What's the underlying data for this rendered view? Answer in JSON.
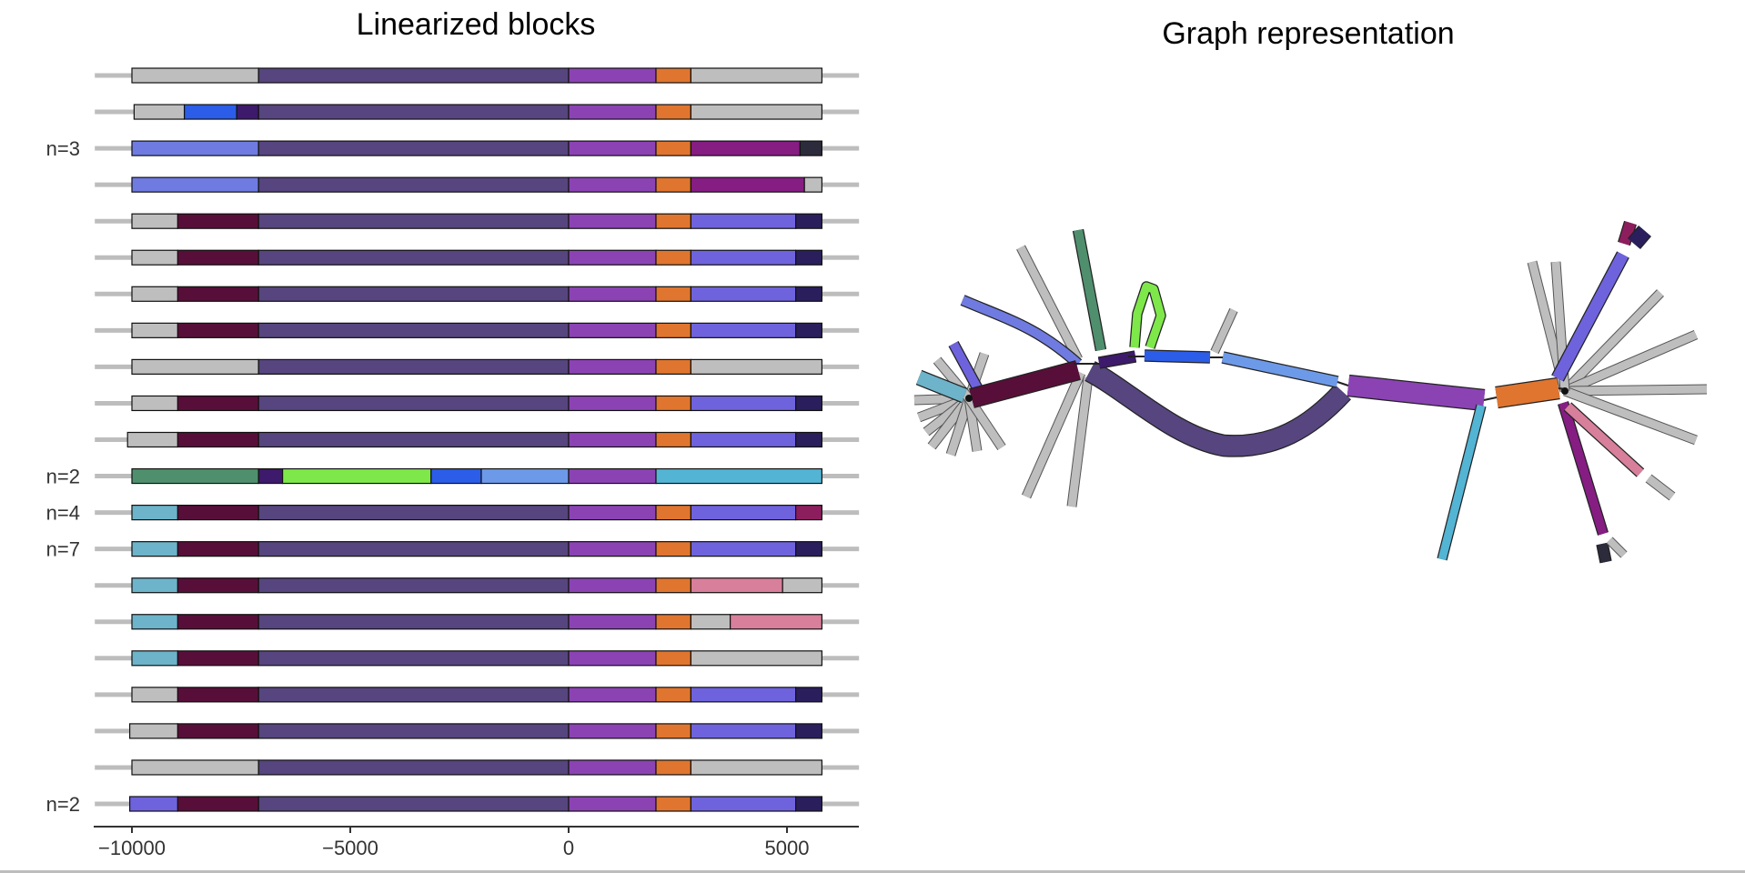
{
  "titles": {
    "linear": "Linearized blocks",
    "graph": "Graph representation"
  },
  "colors": {
    "track": "#bdbdbd",
    "gray": "#bebebe",
    "darkpurple": "#56457e",
    "purple": "#8b43b4",
    "orange": "#e0752f",
    "blue": "#6f7be0",
    "maroon": "#570f39",
    "violet": "#6e63dc",
    "navy": "#2a1f5c",
    "magenta": "#861d83",
    "charcoal": "#2b2b3b",
    "teal": "#6db3c9",
    "pink": "#d77f9b",
    "indigo": "#3d1a6b",
    "royal": "#2b5de8",
    "green": "#4f8f6d",
    "lime": "#7ee84a",
    "skyblue": "#6d9ae8",
    "cyan": "#53b4d4",
    "berry": "#8d1e5e"
  },
  "x_axis": {
    "min": -10000,
    "max": 5000,
    "ticks": [
      -10000,
      -5000,
      0,
      5000
    ],
    "tick_labels": [
      "−10000",
      "−5000",
      "0",
      "5000"
    ]
  },
  "rows": [
    {
      "label": "",
      "track": [
        -10850,
        6650
      ],
      "blocks": [
        [
          -10000,
          -7100,
          "gray"
        ],
        [
          -7100,
          0,
          "darkpurple"
        ],
        [
          0,
          2000,
          "purple"
        ],
        [
          2000,
          2800,
          "orange"
        ],
        [
          2800,
          5800,
          "gray"
        ]
      ]
    },
    {
      "label": "",
      "track": [
        -10850,
        6650
      ],
      "blocks": [
        [
          -9950,
          -8800,
          "gray"
        ],
        [
          -8800,
          -7600,
          "royal"
        ],
        [
          -7600,
          -7100,
          "indigo"
        ],
        [
          -7100,
          0,
          "darkpurple"
        ],
        [
          0,
          2000,
          "purple"
        ],
        [
          2000,
          2800,
          "orange"
        ],
        [
          2800,
          5800,
          "gray"
        ]
      ]
    },
    {
      "label": "n=3",
      "track": [
        -10850,
        6650
      ],
      "blocks": [
        [
          -10000,
          -7100,
          "blue"
        ],
        [
          -7100,
          0,
          "darkpurple"
        ],
        [
          0,
          2000,
          "purple"
        ],
        [
          2000,
          2800,
          "orange"
        ],
        [
          2800,
          5300,
          "magenta"
        ],
        [
          5300,
          5800,
          "charcoal"
        ]
      ]
    },
    {
      "label": "",
      "track": [
        -10850,
        6650
      ],
      "blocks": [
        [
          -10000,
          -7100,
          "blue"
        ],
        [
          -7100,
          0,
          "darkpurple"
        ],
        [
          0,
          2000,
          "purple"
        ],
        [
          2000,
          2800,
          "orange"
        ],
        [
          2800,
          5400,
          "magenta"
        ],
        [
          5400,
          5800,
          "gray"
        ]
      ]
    },
    {
      "label": "",
      "track": [
        -10850,
        6650
      ],
      "blocks": [
        [
          -10000,
          -8950,
          "gray"
        ],
        [
          -8950,
          -7100,
          "maroon"
        ],
        [
          -7100,
          0,
          "darkpurple"
        ],
        [
          0,
          2000,
          "purple"
        ],
        [
          2000,
          2800,
          "orange"
        ],
        [
          2800,
          5200,
          "violet"
        ],
        [
          5200,
          5800,
          "navy"
        ]
      ]
    },
    {
      "label": "",
      "track": [
        -10850,
        6650
      ],
      "blocks": [
        [
          -10000,
          -8950,
          "gray"
        ],
        [
          -8950,
          -7100,
          "maroon"
        ],
        [
          -7100,
          0,
          "darkpurple"
        ],
        [
          0,
          2000,
          "purple"
        ],
        [
          2000,
          2800,
          "orange"
        ],
        [
          2800,
          5200,
          "violet"
        ],
        [
          5200,
          5800,
          "navy"
        ]
      ]
    },
    {
      "label": "",
      "track": [
        -10850,
        6650
      ],
      "blocks": [
        [
          -10000,
          -8950,
          "gray"
        ],
        [
          -8950,
          -7100,
          "maroon"
        ],
        [
          -7100,
          0,
          "darkpurple"
        ],
        [
          0,
          2000,
          "purple"
        ],
        [
          2000,
          2800,
          "orange"
        ],
        [
          2800,
          5200,
          "violet"
        ],
        [
          5200,
          5800,
          "navy"
        ]
      ]
    },
    {
      "label": "",
      "track": [
        -10850,
        6650
      ],
      "blocks": [
        [
          -10000,
          -8950,
          "gray"
        ],
        [
          -8950,
          -7100,
          "maroon"
        ],
        [
          -7100,
          0,
          "darkpurple"
        ],
        [
          0,
          2000,
          "purple"
        ],
        [
          2000,
          2800,
          "orange"
        ],
        [
          2800,
          5200,
          "violet"
        ],
        [
          5200,
          5800,
          "navy"
        ]
      ]
    },
    {
      "label": "",
      "track": [
        -10850,
        6650
      ],
      "blocks": [
        [
          -10000,
          -7100,
          "gray"
        ],
        [
          -7100,
          0,
          "darkpurple"
        ],
        [
          0,
          2000,
          "purple"
        ],
        [
          2000,
          2800,
          "orange"
        ],
        [
          2800,
          5800,
          "gray"
        ]
      ]
    },
    {
      "label": "",
      "track": [
        -10850,
        6650
      ],
      "blocks": [
        [
          -10000,
          -8950,
          "gray"
        ],
        [
          -8950,
          -7100,
          "maroon"
        ],
        [
          -7100,
          0,
          "darkpurple"
        ],
        [
          0,
          2000,
          "purple"
        ],
        [
          2000,
          2800,
          "orange"
        ],
        [
          2800,
          5200,
          "violet"
        ],
        [
          5200,
          5800,
          "navy"
        ]
      ]
    },
    {
      "label": "",
      "track": [
        -10850,
        6650
      ],
      "blocks": [
        [
          -10100,
          -8950,
          "gray"
        ],
        [
          -8950,
          -7100,
          "maroon"
        ],
        [
          -7100,
          0,
          "darkpurple"
        ],
        [
          0,
          2000,
          "purple"
        ],
        [
          2000,
          2800,
          "orange"
        ],
        [
          2800,
          5200,
          "violet"
        ],
        [
          5200,
          5800,
          "navy"
        ]
      ]
    },
    {
      "label": "n=2",
      "track": [
        -10850,
        6650
      ],
      "blocks": [
        [
          -10000,
          -7100,
          "green"
        ],
        [
          -7100,
          -6550,
          "indigo"
        ],
        [
          -6550,
          -3150,
          "lime"
        ],
        [
          -3150,
          -2000,
          "royal"
        ],
        [
          -2000,
          0,
          "skyblue"
        ],
        [
          0,
          2000,
          "purple"
        ],
        [
          2000,
          5800,
          "cyan"
        ]
      ]
    },
    {
      "label": "n=4",
      "track": [
        -10850,
        6650
      ],
      "blocks": [
        [
          -10000,
          -8950,
          "teal"
        ],
        [
          -8950,
          -7100,
          "maroon"
        ],
        [
          -7100,
          0,
          "darkpurple"
        ],
        [
          0,
          2000,
          "purple"
        ],
        [
          2000,
          2800,
          "orange"
        ],
        [
          2800,
          5200,
          "violet"
        ],
        [
          5200,
          5800,
          "berry"
        ]
      ]
    },
    {
      "label": "n=7",
      "track": [
        -10850,
        6650
      ],
      "blocks": [
        [
          -10000,
          -8950,
          "teal"
        ],
        [
          -8950,
          -7100,
          "maroon"
        ],
        [
          -7100,
          0,
          "darkpurple"
        ],
        [
          0,
          2000,
          "purple"
        ],
        [
          2000,
          2800,
          "orange"
        ],
        [
          2800,
          5200,
          "violet"
        ],
        [
          5200,
          5800,
          "navy"
        ]
      ]
    },
    {
      "label": "",
      "track": [
        -10850,
        6650
      ],
      "blocks": [
        [
          -10000,
          -8950,
          "teal"
        ],
        [
          -8950,
          -7100,
          "maroon"
        ],
        [
          -7100,
          0,
          "darkpurple"
        ],
        [
          0,
          2000,
          "purple"
        ],
        [
          2000,
          2800,
          "orange"
        ],
        [
          2800,
          4900,
          "pink"
        ],
        [
          4900,
          5800,
          "gray"
        ]
      ]
    },
    {
      "label": "",
      "track": [
        -10850,
        6650
      ],
      "blocks": [
        [
          -10000,
          -8950,
          "teal"
        ],
        [
          -8950,
          -7100,
          "maroon"
        ],
        [
          -7100,
          0,
          "darkpurple"
        ],
        [
          0,
          2000,
          "purple"
        ],
        [
          2000,
          2800,
          "orange"
        ],
        [
          2800,
          3700,
          "gray"
        ],
        [
          3700,
          5800,
          "pink"
        ]
      ]
    },
    {
      "label": "",
      "track": [
        -10850,
        6650
      ],
      "blocks": [
        [
          -10000,
          -8950,
          "teal"
        ],
        [
          -8950,
          -7100,
          "maroon"
        ],
        [
          -7100,
          0,
          "darkpurple"
        ],
        [
          0,
          2000,
          "purple"
        ],
        [
          2000,
          2800,
          "orange"
        ],
        [
          2800,
          5800,
          "gray"
        ]
      ]
    },
    {
      "label": "",
      "track": [
        -10850,
        6650
      ],
      "blocks": [
        [
          -10000,
          -8950,
          "gray"
        ],
        [
          -8950,
          -7100,
          "maroon"
        ],
        [
          -7100,
          0,
          "darkpurple"
        ],
        [
          0,
          2000,
          "purple"
        ],
        [
          2000,
          2800,
          "orange"
        ],
        [
          2800,
          5200,
          "violet"
        ],
        [
          5200,
          5800,
          "navy"
        ]
      ]
    },
    {
      "label": "",
      "track": [
        -10850,
        6650
      ],
      "blocks": [
        [
          -10050,
          -8950,
          "gray"
        ],
        [
          -8950,
          -7100,
          "maroon"
        ],
        [
          -7100,
          0,
          "darkpurple"
        ],
        [
          0,
          2000,
          "purple"
        ],
        [
          2000,
          2800,
          "orange"
        ],
        [
          2800,
          5200,
          "violet"
        ],
        [
          5200,
          5800,
          "navy"
        ]
      ]
    },
    {
      "label": "",
      "track": [
        -10850,
        6650
      ],
      "blocks": [
        [
          -10000,
          -7100,
          "gray"
        ],
        [
          -7100,
          0,
          "darkpurple"
        ],
        [
          0,
          2000,
          "purple"
        ],
        [
          2000,
          2800,
          "orange"
        ],
        [
          2800,
          5800,
          "gray"
        ]
      ]
    },
    {
      "label": "n=2",
      "track": [
        -10850,
        6650
      ],
      "blocks": [
        [
          -10050,
          -8950,
          "violet"
        ],
        [
          -8950,
          -7100,
          "maroon"
        ],
        [
          -7100,
          0,
          "darkpurple"
        ],
        [
          0,
          2000,
          "purple"
        ],
        [
          2000,
          2800,
          "orange"
        ],
        [
          2800,
          5200,
          "violet"
        ],
        [
          5200,
          5800,
          "navy"
        ]
      ]
    }
  ],
  "graph": {
    "segments": [
      {
        "name": "maroon-core",
        "color": "maroon"
      },
      {
        "name": "darkpurple-arc",
        "color": "darkpurple"
      },
      {
        "name": "indigo-link",
        "color": "indigo"
      },
      {
        "name": "royal-link",
        "color": "royal"
      },
      {
        "name": "skyblue-link",
        "color": "skyblue"
      },
      {
        "name": "purple-main",
        "color": "purple"
      },
      {
        "name": "orange-main",
        "color": "orange"
      },
      {
        "name": "lime-loop",
        "color": "lime"
      },
      {
        "name": "green-branch",
        "color": "green"
      },
      {
        "name": "blue-branch",
        "color": "blue"
      },
      {
        "name": "violet-branch-left",
        "color": "violet"
      },
      {
        "name": "teal-branch",
        "color": "teal"
      },
      {
        "name": "cyan-branch",
        "color": "cyan"
      },
      {
        "name": "violet-branch-right",
        "color": "violet"
      },
      {
        "name": "magenta-branch",
        "color": "magenta"
      },
      {
        "name": "pink-branch",
        "color": "pink"
      },
      {
        "name": "berry-tip",
        "color": "berry"
      },
      {
        "name": "navy-tip",
        "color": "navy"
      },
      {
        "name": "charcoal-tip",
        "color": "charcoal"
      }
    ]
  }
}
